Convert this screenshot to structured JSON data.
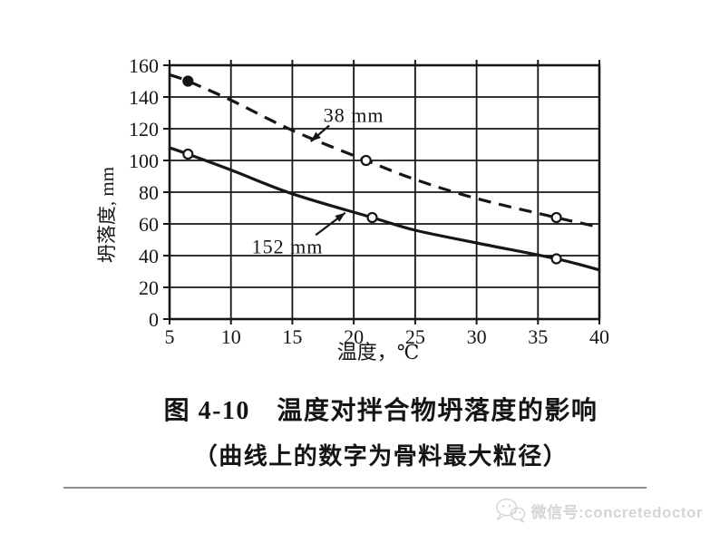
{
  "colors": {
    "background": "#ffffff",
    "ink": "#161616",
    "watermark": "#d5d5d5",
    "divider": "#8d8d8d"
  },
  "chart_data": {
    "type": "line",
    "title": "温度对拌合物坍落度的影响",
    "xlabel": "温度，℃",
    "ylabel": "坍落度, mm",
    "xlim": [
      5,
      40
    ],
    "ylim": [
      0,
      160
    ],
    "x_ticks": [
      "5",
      "10",
      "15",
      "20",
      "25",
      "30",
      "35",
      "40"
    ],
    "y_ticks": [
      "0",
      "20",
      "40",
      "60",
      "80",
      "100",
      "120",
      "140",
      "160"
    ],
    "grid": true,
    "legend_position": "none",
    "series": [
      {
        "name": "38 mm",
        "line_style": "dashed",
        "x": [
          5,
          6.5,
          10,
          15,
          21,
          25,
          30,
          36.5,
          40
        ],
        "y": [
          154,
          150,
          138,
          119,
          100,
          88,
          76,
          64,
          58
        ],
        "markers": [
          {
            "x": 6.5,
            "y": 150,
            "filled": true
          },
          {
            "x": 21,
            "y": 100,
            "filled": false
          },
          {
            "x": 36.5,
            "y": 64,
            "filled": false
          }
        ]
      },
      {
        "name": "152 mm",
        "line_style": "solid",
        "x": [
          5,
          6.5,
          10,
          15,
          21.5,
          25,
          30,
          36.5,
          40
        ],
        "y": [
          108,
          104,
          94,
          79,
          64,
          56,
          48,
          38,
          31
        ],
        "markers": [
          {
            "x": 6.5,
            "y": 104,
            "filled": false
          },
          {
            "x": 21.5,
            "y": 64,
            "filled": false
          },
          {
            "x": 36.5,
            "y": 38,
            "filled": false
          }
        ]
      }
    ],
    "annotations": [
      {
        "label": "38 mm",
        "text_x": 20.0,
        "text_y": 129,
        "arrow_from_x": 18.0,
        "arrow_from_y": 122,
        "arrow_to_x": 16.5,
        "arrow_to_y": 112
      },
      {
        "label": "152 mm",
        "text_x": 14.6,
        "text_y": 46,
        "arrow_from_x": 16.9,
        "arrow_from_y": 53,
        "arrow_to_x": 19.3,
        "arrow_to_y": 67
      }
    ]
  },
  "caption": {
    "line1": "图 4-10　温度对拌合物坍落度的影响",
    "line2": "（曲线上的数字为骨料最大粒径）"
  },
  "footer": {
    "wechat_label": "微信号:concretedoctor"
  }
}
